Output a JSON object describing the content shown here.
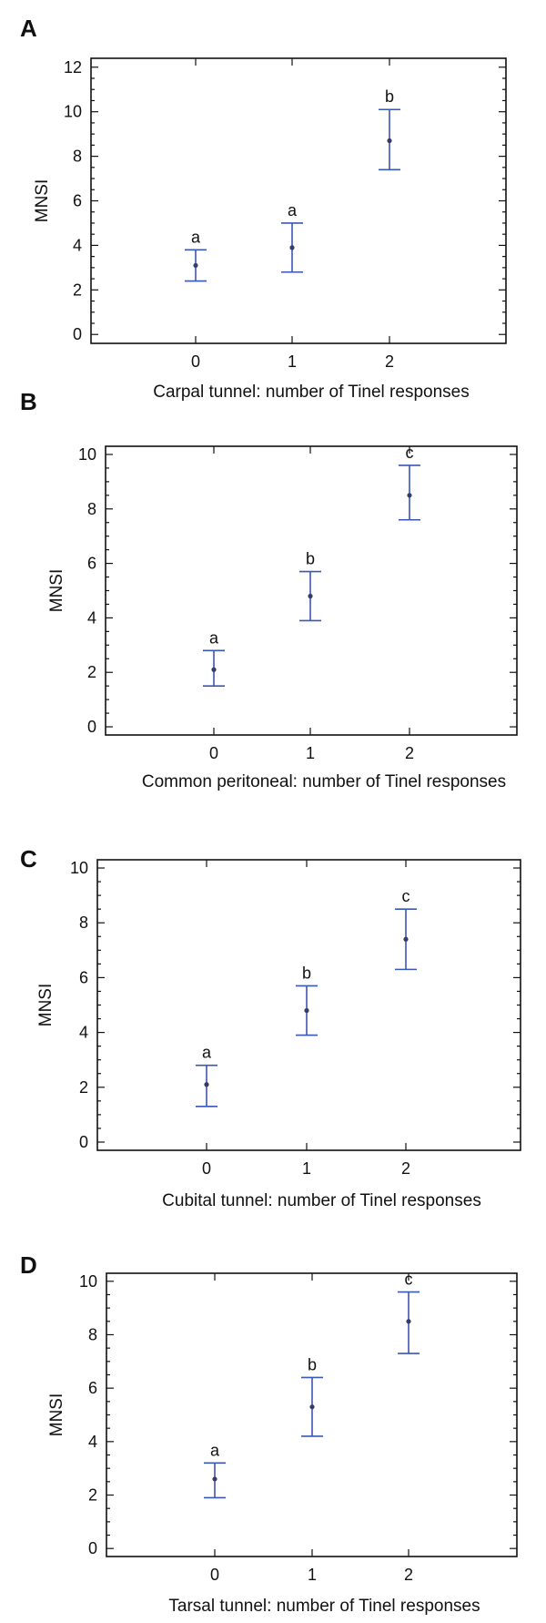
{
  "chart_data": [
    {
      "type": "scatter",
      "panel": "A",
      "xlabel": "Carpal tunnel: number of Tinel responses",
      "ylabel": "MNSI",
      "categories": [
        "0",
        "1",
        "2"
      ],
      "ylim": [
        -0.4,
        12.4
      ],
      "yticks": [
        0,
        2,
        4,
        6,
        8,
        10,
        12
      ],
      "series": [
        {
          "mean": [
            3.1,
            3.9,
            8.7
          ],
          "lower": [
            2.4,
            2.8,
            7.4
          ],
          "upper": [
            3.8,
            5.0,
            10.1
          ],
          "letters": [
            "a",
            "a",
            "b"
          ]
        }
      ],
      "color": "#3b57b5"
    },
    {
      "type": "scatter",
      "panel": "B",
      "xlabel": "Common peritoneal: number of Tinel responses",
      "ylabel": "MNSI",
      "categories": [
        "0",
        "1",
        "2"
      ],
      "ylim": [
        -0.3,
        10.3
      ],
      "yticks": [
        0,
        2,
        4,
        6,
        8,
        10
      ],
      "series": [
        {
          "mean": [
            2.1,
            4.8,
            8.5
          ],
          "lower": [
            1.5,
            3.9,
            7.6
          ],
          "upper": [
            2.8,
            5.7,
            9.6
          ],
          "letters": [
            "a",
            "b",
            "c"
          ]
        }
      ],
      "color": "#3b57b5"
    },
    {
      "type": "scatter",
      "panel": "C",
      "xlabel": "Cubital tunnel: number of Tinel responses",
      "ylabel": "MNSI",
      "categories": [
        "0",
        "1",
        "2"
      ],
      "ylim": [
        -0.3,
        10.3
      ],
      "yticks": [
        0,
        2,
        4,
        6,
        8,
        10
      ],
      "series": [
        {
          "mean": [
            2.1,
            4.8,
            7.4
          ],
          "lower": [
            1.3,
            3.9,
            6.3
          ],
          "upper": [
            2.8,
            5.7,
            8.5
          ],
          "letters": [
            "a",
            "b",
            "c"
          ]
        }
      ],
      "color": "#3b57b5"
    },
    {
      "type": "scatter",
      "panel": "D",
      "xlabel": "Tarsal tunnel: number of Tinel responses",
      "ylabel": "MNSI",
      "categories": [
        "0",
        "1",
        "2"
      ],
      "ylim": [
        -0.3,
        10.3
      ],
      "yticks": [
        0,
        2,
        4,
        6,
        8,
        10
      ],
      "series": [
        {
          "mean": [
            2.6,
            5.3,
            8.5
          ],
          "lower": [
            1.9,
            4.2,
            7.3
          ],
          "upper": [
            3.2,
            6.4,
            9.6
          ],
          "letters": [
            "a",
            "b",
            "c"
          ]
        }
      ],
      "color": "#3b57b5"
    }
  ]
}
